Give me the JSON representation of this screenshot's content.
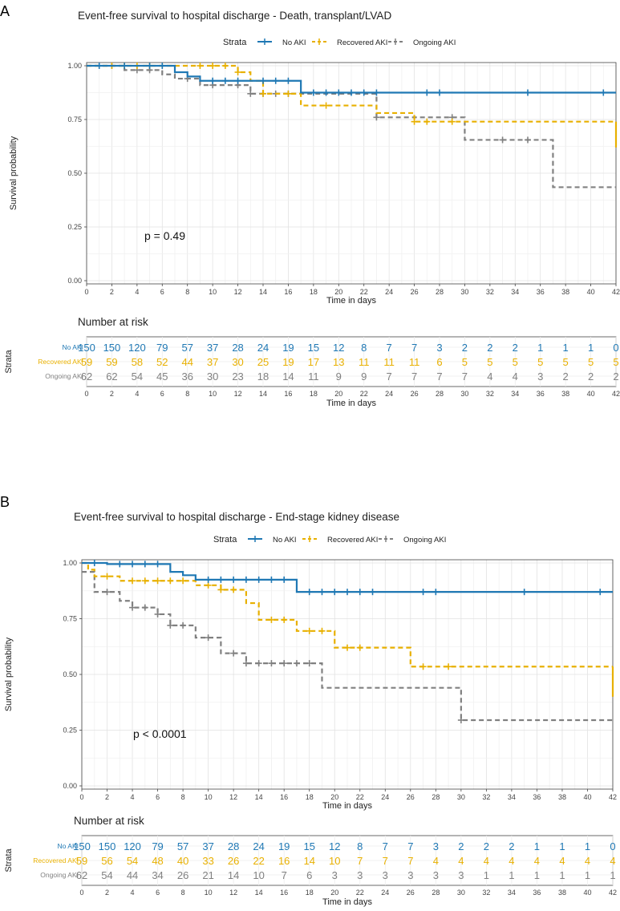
{
  "colors": {
    "no_aki": "#1f78b4",
    "recovered": "#e8b000",
    "ongoing": "#808080",
    "grid": "#e6e6e6",
    "frame": "#555555"
  },
  "chart_data": [
    {
      "panel_label": "A",
      "type": "line",
      "title": "Event-free survival to hospital discharge - Death, transplant/LVAD",
      "legend_title": "Strata",
      "legend_position": "top",
      "xlabel": "Time in days",
      "ylabel": "Survival probability",
      "xlim": [
        0,
        42
      ],
      "ylim": [
        0,
        1
      ],
      "xticks": [
        "0",
        "2",
        "4",
        "6",
        "8",
        "10",
        "12",
        "14",
        "16",
        "18",
        "20",
        "22",
        "24",
        "26",
        "28",
        "30",
        "32",
        "34",
        "36",
        "38",
        "40",
        "42"
      ],
      "yticks": [
        "0.00",
        "0.25",
        "0.50",
        "0.75",
        "1.00"
      ],
      "pvalue_text": "p = 0.49",
      "grid": true,
      "series": [
        {
          "name": "No AKI",
          "style": "solid",
          "steps": [
            [
              0,
              1
            ],
            [
              7,
              0.97
            ],
            [
              8,
              0.95
            ],
            [
              9,
              0.93
            ],
            [
              17,
              0.875
            ],
            [
              42,
              0.875
            ]
          ],
          "censors": [
            1,
            3,
            5,
            6,
            10,
            11,
            12,
            14,
            15,
            16,
            18,
            19,
            20,
            21,
            22,
            23,
            27,
            28,
            35,
            41
          ]
        },
        {
          "name": "Recovered AKI",
          "style": "dashed",
          "steps": [
            [
              0,
              1
            ],
            [
              12,
              0.97
            ],
            [
              13,
              0.93
            ],
            [
              14,
              0.87
            ],
            [
              17,
              0.815
            ],
            [
              23,
              0.78
            ],
            [
              26,
              0.74
            ],
            [
              42,
              0.74
            ]
          ],
          "censors": [
            2,
            3,
            4,
            5,
            6,
            9,
            10,
            11,
            12,
            14,
            16,
            19,
            26,
            27,
            29
          ],
          "drop": [
            42,
            0.62
          ]
        },
        {
          "name": "Ongoing AKI",
          "style": "dashed",
          "steps": [
            [
              0,
              1
            ],
            [
              3,
              0.98
            ],
            [
              6,
              0.96
            ],
            [
              7,
              0.94
            ],
            [
              9,
              0.91
            ],
            [
              13,
              0.87
            ],
            [
              23,
              0.76
            ],
            [
              30,
              0.655
            ],
            [
              37,
              0.435
            ],
            [
              42,
              0.435
            ]
          ],
          "censors": [
            2,
            4,
            5,
            8,
            10,
            12,
            13,
            14,
            15,
            16,
            23,
            29,
            33,
            35
          ]
        }
      ],
      "risk_table": {
        "title": "Number at risk",
        "y_title": "Strata",
        "xlabel": "Time in days",
        "rows": [
          {
            "name": "No AKI",
            "values": [
              "150",
              "150",
              "120",
              "79",
              "57",
              "37",
              "28",
              "24",
              "19",
              "15",
              "12",
              "8",
              "7",
              "7",
              "3",
              "2",
              "2",
              "2",
              "1",
              "1",
              "1",
              "0"
            ]
          },
          {
            "name": "Recovered AKI",
            "values": [
              "59",
              "59",
              "58",
              "52",
              "44",
              "37",
              "30",
              "25",
              "19",
              "17",
              "13",
              "11",
              "11",
              "11",
              "6",
              "5",
              "5",
              "5",
              "5",
              "5",
              "5",
              "5"
            ]
          },
          {
            "name": "Ongoing AKI",
            "values": [
              "62",
              "62",
              "54",
              "45",
              "36",
              "30",
              "23",
              "18",
              "14",
              "11",
              "9",
              "9",
              "7",
              "7",
              "7",
              "7",
              "4",
              "4",
              "3",
              "2",
              "2",
              "2"
            ]
          }
        ]
      }
    },
    {
      "panel_label": "B",
      "type": "line",
      "title": "Event-free survival to hospital discharge - End-stage kidney disease",
      "legend_title": "Strata",
      "legend_position": "top",
      "xlabel": "Time in days",
      "ylabel": "Survival probability",
      "xlim": [
        0,
        42
      ],
      "ylim": [
        0,
        1
      ],
      "xticks": [
        "0",
        "2",
        "4",
        "6",
        "8",
        "10",
        "12",
        "14",
        "16",
        "18",
        "20",
        "22",
        "24",
        "26",
        "28",
        "30",
        "32",
        "34",
        "36",
        "38",
        "40",
        "42"
      ],
      "yticks": [
        "0.00",
        "0.25",
        "0.50",
        "0.75",
        "1.00"
      ],
      "pvalue_text": "p < 0.0001",
      "grid": true,
      "series": [
        {
          "name": "No AKI",
          "style": "solid",
          "steps": [
            [
              0,
              1
            ],
            [
              2,
              0.995
            ],
            [
              7,
              0.96
            ],
            [
              8,
              0.945
            ],
            [
              9,
              0.925
            ],
            [
              17,
              0.87
            ],
            [
              42,
              0.87
            ]
          ],
          "censors": [
            1,
            3,
            4,
            5,
            6,
            10,
            11,
            12,
            13,
            14,
            15,
            16,
            18,
            19,
            20,
            21,
            22,
            23,
            27,
            28,
            35,
            41
          ]
        },
        {
          "name": "Recovered AKI",
          "style": "dashed",
          "steps": [
            [
              0,
              1
            ],
            [
              0.5,
              0.97
            ],
            [
              1,
              0.94
            ],
            [
              3,
              0.92
            ],
            [
              9,
              0.9
            ],
            [
              11,
              0.88
            ],
            [
              13,
              0.82
            ],
            [
              14,
              0.745
            ],
            [
              17,
              0.695
            ],
            [
              20,
              0.62
            ],
            [
              26,
              0.535
            ],
            [
              42,
              0.535
            ]
          ],
          "censors": [
            2,
            4,
            5,
            6,
            7,
            8,
            10,
            11,
            12,
            15,
            16,
            18,
            19,
            21,
            22,
            27,
            29
          ],
          "drop": [
            42,
            0.4
          ]
        },
        {
          "name": "Ongoing AKI",
          "style": "dashed",
          "steps": [
            [
              0,
              0.96
            ],
            [
              1,
              0.87
            ],
            [
              3,
              0.83
            ],
            [
              4,
              0.8
            ],
            [
              6,
              0.77
            ],
            [
              7,
              0.72
            ],
            [
              9,
              0.665
            ],
            [
              11,
              0.595
            ],
            [
              13,
              0.55
            ],
            [
              19,
              0.44
            ],
            [
              30,
              0.295
            ],
            [
              42,
              0.295
            ]
          ],
          "censors": [
            2,
            4,
            5,
            6,
            7,
            8,
            10,
            12,
            13,
            14,
            15,
            16,
            17,
            18,
            30
          ]
        }
      ],
      "risk_table": {
        "title": "Number at risk",
        "y_title": "Strata",
        "xlabel": "Time in days",
        "rows": [
          {
            "name": "No AKI",
            "values": [
              "150",
              "150",
              "120",
              "79",
              "57",
              "37",
              "28",
              "24",
              "19",
              "15",
              "12",
              "8",
              "7",
              "7",
              "3",
              "2",
              "2",
              "2",
              "1",
              "1",
              "1",
              "0"
            ]
          },
          {
            "name": "Recovered AKI",
            "values": [
              "59",
              "56",
              "54",
              "48",
              "40",
              "33",
              "26",
              "22",
              "16",
              "14",
              "10",
              "7",
              "7",
              "7",
              "4",
              "4",
              "4",
              "4",
              "4",
              "4",
              "4",
              "4"
            ]
          },
          {
            "name": "Ongoing AKI",
            "values": [
              "62",
              "54",
              "44",
              "34",
              "26",
              "21",
              "14",
              "10",
              "7",
              "6",
              "3",
              "3",
              "3",
              "3",
              "3",
              "3",
              "1",
              "1",
              "1",
              "1",
              "1",
              "1"
            ]
          }
        ]
      }
    }
  ]
}
